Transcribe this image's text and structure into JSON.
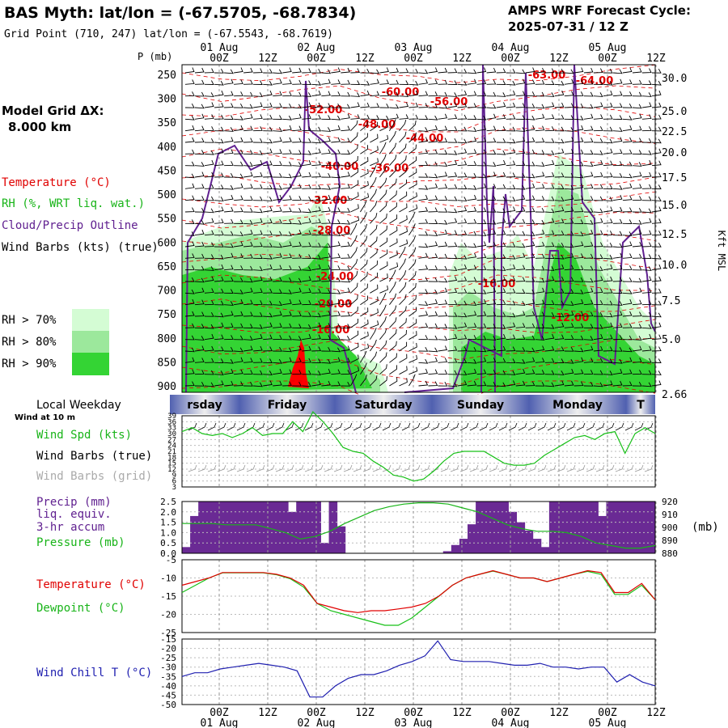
{
  "header": {
    "title": "BAS Myth:  lat/lon = (-67.5705, -68.7834)",
    "subtitle": "Grid Point (710, 247) lat/lon = (-67.5543, -68.7619)",
    "cycle_label": "AMPS WRF Forecast Cycle:",
    "cycle_value": "2025-07-31 / 12  Z"
  },
  "model_grid": {
    "label": "Model Grid ΔX:",
    "value": "8.000 km"
  },
  "left_legend": {
    "temperature": "Temperature (°C)",
    "rh": "RH (%, WRT liq. wat.)",
    "cloud": "Cloud/Precip Outline",
    "wind": "Wind Barbs (kts) (true)",
    "rh70": "RH > 70%",
    "rh80": "RH > 80%",
    "rh90": "RH > 90%"
  },
  "colors": {
    "rh70": "#d4fcd4",
    "rh80": "#9ce89c",
    "rh90": "#34d434",
    "temp": "#e00000",
    "cloud": "#602090",
    "precip": "#6a2a94",
    "pressure": "#18b418",
    "dewpoint": "#18c018",
    "windchill": "#2020b0",
    "windspd": "#18c018"
  },
  "time_axis": {
    "dates": [
      "01 Aug",
      "02 Aug",
      "03 Aug",
      "04 Aug",
      "05 Aug"
    ],
    "hours": [
      "00Z",
      "12Z",
      "00Z",
      "12Z",
      "00Z",
      "12Z",
      "00Z",
      "12Z",
      "00Z",
      "12Z"
    ]
  },
  "weekdays": {
    "title": "Local Weekday",
    "names": [
      "rsday",
      "Friday",
      "Saturday",
      "Sunday",
      "Monday",
      "T"
    ]
  },
  "chart_data": [
    {
      "type": "heatmap",
      "name": "cross-section",
      "ylabel": "P (mb)",
      "ylabel_right": "Kft MSL",
      "pressure_ticks": [
        250,
        300,
        350,
        400,
        450,
        500,
        550,
        600,
        650,
        700,
        750,
        800,
        850,
        900
      ],
      "height_ticks": [
        "30.0",
        "25.0",
        "22.5",
        "20.0",
        "17.5",
        "15.0",
        "12.5",
        "10.0",
        "7.5",
        "5.0",
        "2.66"
      ],
      "temp_labels": [
        "-52.00",
        "-60.00",
        "-56.00",
        "-48.00",
        "-44.00",
        "-40.00",
        "-36.00",
        "-32.00",
        "-28.00",
        "-24.00",
        "-20.00",
        "-16.00",
        "-63.00",
        "-64.00",
        "-16.00",
        "-12.00"
      ]
    },
    {
      "type": "line",
      "name": "wind-at-10m",
      "label_small": "Wind at 10 m",
      "series": [
        {
          "name": "Wind Spd (kts)",
          "values": [
            31,
            33,
            30,
            29,
            30,
            28,
            30,
            33,
            29,
            30,
            30,
            36,
            31,
            41,
            36,
            30,
            23,
            21,
            20,
            16,
            13,
            9,
            8,
            6,
            7,
            11,
            16,
            20,
            21,
            21,
            21,
            18,
            15,
            14,
            14,
            15,
            19,
            22,
            25,
            28,
            29,
            27,
            30,
            31,
            20,
            30,
            33,
            30
          ]
        }
      ],
      "wind_barbs_true_label": "Wind Barbs (true)",
      "wind_barbs_grid_label": "Wind Barbs (grid)",
      "yticks": [
        3,
        6,
        9,
        12,
        15,
        18,
        21,
        24,
        27,
        30,
        33,
        36,
        39
      ],
      "ylim": [
        3,
        39
      ]
    },
    {
      "type": "bar",
      "name": "precip-pressure",
      "labels": [
        "Precip (mm)",
        "liq. equiv.",
        "3-hr accum",
        "Pressure (mb)"
      ],
      "precip_values": [
        0.3,
        1.8,
        2.5,
        2.5,
        2.5,
        2.5,
        2.5,
        2.5,
        2.5,
        2.5,
        2.5,
        2.5,
        2.5,
        2.0,
        2.5,
        2.5,
        2.5,
        0.5,
        2.5,
        1.3,
        0,
        0,
        0,
        0,
        0,
        0,
        0,
        0,
        0,
        0,
        0,
        0,
        0.1,
        0.4,
        0.7,
        1.4,
        2.5,
        2.5,
        2.5,
        2.5,
        2.0,
        1.5,
        1.1,
        0.7,
        0.3,
        2.5,
        2.5,
        2.5,
        2.5,
        2.5,
        2.5,
        1.8,
        2.5,
        2.5,
        2.5,
        2.5,
        2.5,
        2.5
      ],
      "pressure_values": [
        903,
        903,
        903,
        902,
        902,
        902,
        899,
        896,
        891,
        893,
        897,
        903,
        908,
        913,
        916,
        918,
        919,
        919,
        918,
        915,
        912,
        907,
        902,
        899,
        897,
        897,
        896,
        893,
        888,
        886,
        884,
        884,
        886
      ],
      "yticks_left": [
        "0.0",
        "0.5",
        "1.0",
        "1.5",
        "2.0",
        "2.5"
      ],
      "yticks_right": [
        "880",
        "890",
        "900",
        "910",
        "920"
      ],
      "right_unit": "(mb)",
      "ylim_left": [
        0,
        2.5
      ],
      "ylim_right": [
        880,
        920
      ]
    },
    {
      "type": "line",
      "name": "temperature-dewpoint",
      "series": [
        {
          "name": "Temperature (°C)",
          "values": [
            -12,
            -11,
            -10,
            -8.5,
            -8.5,
            -8.5,
            -8.5,
            -9,
            -10,
            -12,
            -17,
            -18,
            -19,
            -19.5,
            -19,
            -19,
            -18.5,
            -18,
            -17,
            -15,
            -12,
            -10,
            -9,
            -8,
            -9,
            -10,
            -10,
            -11,
            -10,
            -9,
            -8,
            -8.5,
            -14,
            -14,
            -11.5,
            -16
          ]
        },
        {
          "name": "Dewpoint (°C)",
          "values": [
            -14,
            -12,
            -10,
            -8.6,
            -8.6,
            -8.6,
            -8.6,
            -9.1,
            -10.2,
            -12.5,
            -17,
            -19,
            -20,
            -21,
            -22,
            -23,
            -23,
            -21,
            -18,
            -15,
            -12,
            -10,
            -9,
            -8.1,
            -9,
            -10,
            -10,
            -11,
            -10,
            -9,
            -8.2,
            -9,
            -14.5,
            -14.5,
            -12,
            -16
          ]
        }
      ],
      "yticks": [
        -5,
        -10,
        -15,
        -20,
        -25
      ],
      "ylim": [
        -25,
        -5
      ]
    },
    {
      "type": "line",
      "name": "wind-chill",
      "series": [
        {
          "name": "Wind Chill T (°C)",
          "values": [
            -35,
            -33,
            -33,
            -31,
            -30,
            -29,
            -28,
            -29,
            -30,
            -32,
            -46,
            -46,
            -40,
            -36,
            -34,
            -34,
            -32,
            -29,
            -27,
            -24,
            -16,
            -26,
            -27,
            -27,
            -27,
            -28,
            -29,
            -29,
            -28,
            -30,
            -30,
            -31,
            -30,
            -30,
            -38,
            -34,
            -38,
            -40
          ]
        }
      ],
      "yticks": [
        -15,
        -20,
        -25,
        -30,
        -35,
        -40,
        -45,
        -50
      ],
      "ylim": [
        -50,
        -15
      ]
    }
  ]
}
